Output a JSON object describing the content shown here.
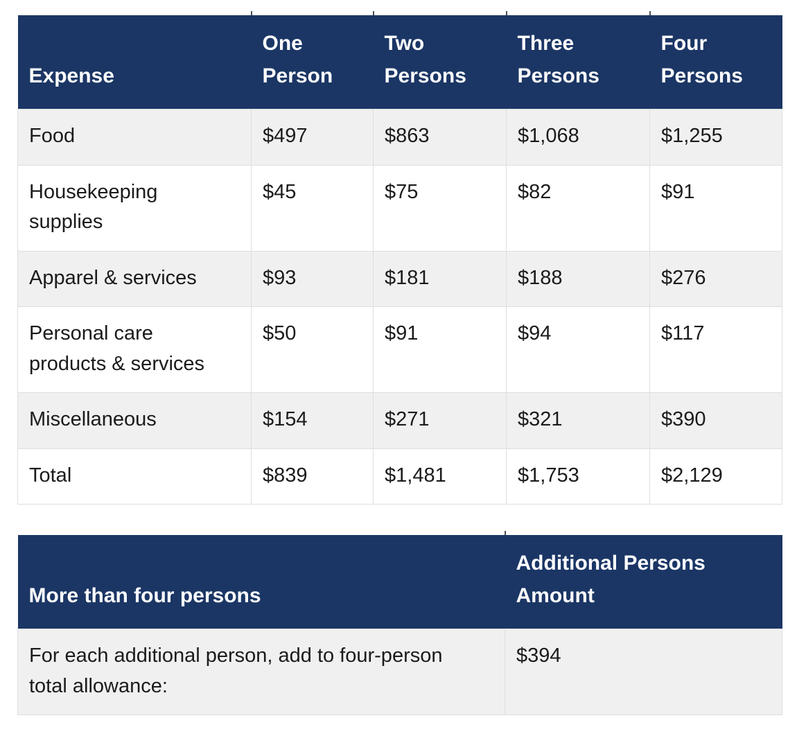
{
  "colors": {
    "page_bg": "#ffffff",
    "header_bg": "#1b3665",
    "header_text": "#ffffff",
    "body_text": "#1b1b1b",
    "stripe_bg": "#f0f0f0",
    "white_row_bg": "#ffffff",
    "border": "#dcdee0",
    "stub": "#4d5157"
  },
  "expense_table": {
    "headers": {
      "expense": "Expense",
      "one": "One Person",
      "two": "Two Persons",
      "three": "Three Persons",
      "four": "Four Persons"
    },
    "rows": [
      {
        "name": "Food",
        "values": [
          "$497",
          "$863",
          "$1,068",
          "$1,255"
        ]
      },
      {
        "name": "Housekeeping supplies",
        "values": [
          "$45",
          "$75",
          "$82",
          "$91"
        ]
      },
      {
        "name": "Apparel & services",
        "values": [
          "$93",
          "$181",
          "$188",
          "$276"
        ]
      },
      {
        "name": "Personal care products & services",
        "values": [
          "$50",
          "$91",
          "$94",
          "$117"
        ]
      },
      {
        "name": "Miscellaneous",
        "values": [
          "$154",
          "$271",
          "$321",
          "$390"
        ]
      },
      {
        "name": "Total",
        "values": [
          "$839",
          "$1,481",
          "$1,753",
          "$2,129"
        ]
      }
    ]
  },
  "additional_table": {
    "headers": {
      "label": "More than four persons",
      "amount": "Additional Persons Amount"
    },
    "rows": [
      {
        "label": "For each additional person, add to four-person total allowance:",
        "amount": "$394"
      }
    ]
  }
}
